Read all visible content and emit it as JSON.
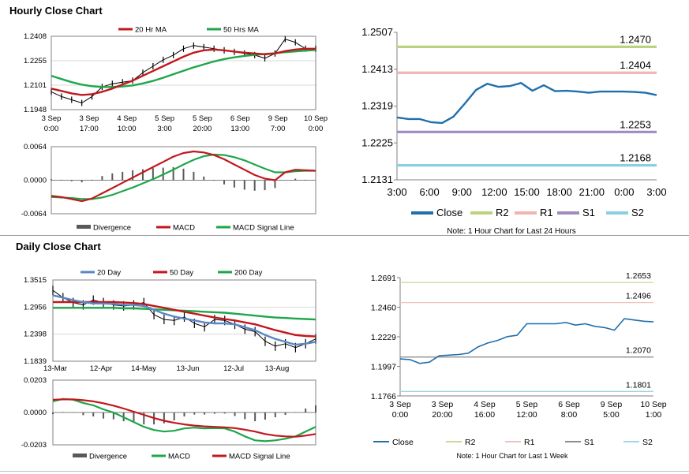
{
  "sections": {
    "hourly_title": "Hourly Close Chart",
    "daily_title": "Daily Close Chart"
  },
  "colors": {
    "red": "#c0181d",
    "green": "#1ea64a",
    "blue": "#5b87c6",
    "close_blue": "#1f6fad",
    "r2": "#bcd27e",
    "r1": "#f0b5b0",
    "s1": "#a08bbf",
    "s2": "#8ccfe0",
    "divergence": "#595959",
    "grey_line": "#b4b4b4",
    "dark_line": "#8c8c8c"
  },
  "chart_data": [
    {
      "id": "hourly_price",
      "type": "line",
      "legend": [
        "20 Hr MA",
        "50 Hrs MA"
      ],
      "yticks": [
        "1.2408",
        "1.2255",
        "1.2101",
        "1.1948"
      ],
      "ylim": [
        1.1948,
        1.2408
      ],
      "xticks": [
        [
          "3 Sep",
          "0:00"
        ],
        [
          "3 Sep",
          "17:00"
        ],
        [
          "4 Sep",
          "10:00"
        ],
        [
          "5 Sep",
          "3:00"
        ],
        [
          "5 Sep",
          "20:00"
        ],
        [
          "6 Sep",
          "13:00"
        ],
        [
          "9 Sep",
          "7:00"
        ],
        [
          "10 Sep",
          "0:00"
        ]
      ],
      "series": [
        {
          "name": "Close",
          "values": [
            1.206,
            1.203,
            1.201,
            1.199,
            1.203,
            1.209,
            1.211,
            1.212,
            1.213,
            1.218,
            1.222,
            1.226,
            1.229,
            1.233,
            1.235,
            1.234,
            1.233,
            1.232,
            1.231,
            1.23,
            1.229,
            1.227,
            1.23,
            1.239,
            1.237,
            1.233,
            1.233
          ]
        },
        {
          "name": "20 Hr MA",
          "values": [
            1.208,
            1.2065,
            1.205,
            1.204,
            1.2045,
            1.206,
            1.208,
            1.2105,
            1.213,
            1.216,
            1.219,
            1.222,
            1.225,
            1.228,
            1.2305,
            1.232,
            1.2325,
            1.232,
            1.2312,
            1.2305,
            1.23,
            1.2295,
            1.23,
            1.2315,
            1.2325,
            1.233,
            1.233
          ]
        },
        {
          "name": "50 Hrs MA",
          "values": [
            1.216,
            1.214,
            1.212,
            1.2105,
            1.2095,
            1.209,
            1.209,
            1.2093,
            1.21,
            1.2112,
            1.2128,
            1.2148,
            1.217,
            1.2192,
            1.2213,
            1.2232,
            1.225,
            1.2265,
            1.2276,
            1.2285,
            1.2292,
            1.2297,
            1.2302,
            1.2308,
            1.2313,
            1.2318,
            1.2322
          ]
        }
      ]
    },
    {
      "id": "hourly_macd",
      "type": "line",
      "legend": [
        "Divergence",
        "MACD",
        "MACD Signal Line"
      ],
      "yticks": [
        "0.0064",
        "0.0000",
        "-0.0064"
      ],
      "ylim": [
        -0.0064,
        0.0064
      ],
      "series": [
        {
          "name": "MACD",
          "values": [
            -0.003,
            -0.0032,
            -0.0036,
            -0.004,
            -0.0035,
            -0.0025,
            -0.0015,
            -0.0005,
            0.0005,
            0.0015,
            0.0025,
            0.0035,
            0.0045,
            0.0052,
            0.0055,
            0.0053,
            0.0048,
            0.004,
            0.003,
            0.002,
            0.001,
            0.0003,
            0.0,
            0.0015,
            0.002,
            0.0019,
            0.0018
          ]
        },
        {
          "name": "MACD Signal Line",
          "values": [
            -0.0032,
            -0.0033,
            -0.0034,
            -0.0036,
            -0.0036,
            -0.0033,
            -0.0028,
            -0.0021,
            -0.0014,
            -0.0006,
            0.0002,
            0.0011,
            0.002,
            0.003,
            0.0039,
            0.0046,
            0.0049,
            0.0048,
            0.0044,
            0.0038,
            0.003,
            0.0022,
            0.0015,
            0.0015,
            0.0017,
            0.0018,
            0.0018
          ]
        },
        {
          "name": "Divergence",
          "values": [
            0.0002,
            0.0001,
            -0.0002,
            -0.0004,
            0.0001,
            0.0008,
            0.0013,
            0.0016,
            0.0019,
            0.0021,
            0.0023,
            0.0024,
            0.0025,
            0.0022,
            0.0016,
            0.0007,
            -0.0001,
            -0.0008,
            -0.0014,
            -0.0018,
            -0.002,
            -0.0019,
            -0.0015,
            0.0,
            0.0003,
            0.0001,
            0.0
          ]
        }
      ]
    },
    {
      "id": "hourly_levels",
      "type": "line",
      "yticks": [
        "1.2507",
        "1.2413",
        "1.2319",
        "1.2225",
        "1.2131"
      ],
      "ylim": [
        1.2131,
        1.2507
      ],
      "xticks": [
        "3:00",
        "6:00",
        "9:00",
        "12:00",
        "15:00",
        "18:00",
        "21:00",
        "0:00",
        "3:00"
      ],
      "levels": [
        {
          "name": "R2",
          "value": 1.247,
          "label": "1.2470"
        },
        {
          "name": "R1",
          "value": 1.2404,
          "label": "1.2404"
        },
        {
          "name": "S1",
          "value": 1.2253,
          "label": "1.2253"
        },
        {
          "name": "S2",
          "value": 1.2168,
          "label": "1.2168"
        }
      ],
      "series": [
        {
          "name": "Close",
          "values": [
            1.229,
            1.2286,
            1.2286,
            1.2278,
            1.2276,
            1.2292,
            1.2325,
            1.236,
            1.2376,
            1.2368,
            1.237,
            1.2378,
            1.2358,
            1.2372,
            1.2357,
            1.2358,
            1.2356,
            1.2353,
            1.2356,
            1.2356,
            1.2356,
            1.2355,
            1.2353,
            1.2347
          ]
        }
      ],
      "legend": [
        "Close",
        "R2",
        "R1",
        "S1",
        "S2"
      ],
      "note": "Note: 1 Hour Chart for Last 24 Hours"
    },
    {
      "id": "daily_price",
      "type": "line",
      "legend": [
        "20 Day",
        "50 Day",
        "200 Day"
      ],
      "yticks": [
        "1.3515",
        "1.2956",
        "1.2398",
        "1.1839"
      ],
      "ylim": [
        1.1839,
        1.3515
      ],
      "xticks": [
        "13-Mar",
        "12-Apr",
        "14-May",
        "13-Jun",
        "12-Jul",
        "13-Aug"
      ],
      "series": [
        {
          "name": "Close",
          "values": [
            1.33,
            1.315,
            1.305,
            1.3,
            1.31,
            1.305,
            1.3,
            1.298,
            1.3,
            1.305,
            1.28,
            1.27,
            1.268,
            1.275,
            1.262,
            1.255,
            1.27,
            1.268,
            1.26,
            1.25,
            1.245,
            1.225,
            1.215,
            1.22,
            1.212,
            1.22,
            1.23
          ]
        },
        {
          "name": "20 Day",
          "values": [
            1.32,
            1.315,
            1.31,
            1.306,
            1.303,
            1.303,
            1.302,
            1.3,
            1.3,
            1.298,
            1.29,
            1.282,
            1.276,
            1.272,
            1.268,
            1.264,
            1.262,
            1.262,
            1.26,
            1.254,
            1.248,
            1.238,
            1.23,
            1.224,
            1.218,
            1.22,
            1.224
          ]
        },
        {
          "name": "50 Day",
          "values": [
            1.306,
            1.306,
            1.306,
            1.306,
            1.306,
            1.306,
            1.306,
            1.305,
            1.304,
            1.302,
            1.298,
            1.294,
            1.29,
            1.286,
            1.282,
            1.278,
            1.274,
            1.271,
            1.268,
            1.264,
            1.26,
            1.254,
            1.248,
            1.243,
            1.238,
            1.236,
            1.235
          ]
        },
        {
          "name": "200 Day",
          "values": [
            1.294,
            1.294,
            1.294,
            1.294,
            1.294,
            1.294,
            1.294,
            1.293,
            1.293,
            1.292,
            1.291,
            1.29,
            1.289,
            1.288,
            1.287,
            1.286,
            1.285,
            1.284,
            1.282,
            1.28,
            1.278,
            1.276,
            1.274,
            1.273,
            1.272,
            1.271,
            1.27
          ]
        }
      ]
    },
    {
      "id": "daily_macd",
      "type": "line",
      "legend": [
        "Divergence",
        "MACD",
        "MACD Signal Line"
      ],
      "yticks": [
        "0.0203",
        "0.0000",
        "-0.0203"
      ],
      "ylim": [
        -0.0203,
        0.0203
      ],
      "series": [
        {
          "name": "MACD",
          "values": [
            0.007,
            0.0085,
            0.008,
            0.006,
            0.0045,
            0.002,
            0.0,
            -0.003,
            -0.006,
            -0.009,
            -0.011,
            -0.012,
            -0.0115,
            -0.01,
            -0.0095,
            -0.01,
            -0.0098,
            -0.01,
            -0.012,
            -0.015,
            -0.0175,
            -0.018,
            -0.0175,
            -0.0165,
            -0.015,
            -0.012,
            -0.009
          ]
        },
        {
          "name": "MACD Signal Line",
          "values": [
            0.008,
            0.0082,
            0.0082,
            0.0077,
            0.007,
            0.0058,
            0.0043,
            0.0025,
            0.0005,
            -0.0015,
            -0.0035,
            -0.0052,
            -0.0065,
            -0.0075,
            -0.0082,
            -0.0087,
            -0.009,
            -0.0093,
            -0.0098,
            -0.0108,
            -0.012,
            -0.0135,
            -0.0145,
            -0.015,
            -0.0152,
            -0.0145,
            -0.0135
          ]
        },
        {
          "name": "Divergence",
          "values": [
            -0.001,
            0.0003,
            -0.0002,
            -0.0017,
            -0.0025,
            -0.0038,
            -0.0043,
            -0.0055,
            -0.0065,
            -0.0075,
            -0.0075,
            -0.0068,
            -0.005,
            -0.0025,
            -0.0013,
            -0.0013,
            -0.0008,
            -0.0007,
            -0.0022,
            -0.0042,
            -0.0055,
            -0.0045,
            -0.003,
            -0.0015,
            0.0002,
            0.0025,
            0.0045
          ]
        }
      ]
    },
    {
      "id": "daily_levels",
      "type": "line",
      "yticks": [
        "1.2691",
        "1.2460",
        "1.2229",
        "1.1997",
        "1.1766"
      ],
      "ylim": [
        1.1766,
        1.2691
      ],
      "xticks": [
        [
          "3 Sep",
          "0:00"
        ],
        [
          "3 Sep",
          "20:00"
        ],
        [
          "4 Sep",
          "16:00"
        ],
        [
          "5 Sep",
          "12:00"
        ],
        [
          "6 Sep",
          "8:00"
        ],
        [
          "9 Sep",
          "5:00"
        ],
        [
          "10 Sep",
          "1:00"
        ]
      ],
      "levels": [
        {
          "name": "R2",
          "value": 1.2653,
          "label": "1.2653"
        },
        {
          "name": "R1",
          "value": 1.2496,
          "label": "1.2496"
        },
        {
          "name": "S1",
          "value": 1.207,
          "label": "1.2070"
        },
        {
          "name": "S2",
          "value": 1.1801,
          "label": "1.1801"
        }
      ],
      "series": [
        {
          "name": "Close",
          "values": [
            1.2055,
            1.205,
            1.202,
            1.203,
            1.208,
            1.2085,
            1.209,
            1.21,
            1.215,
            1.218,
            1.22,
            1.223,
            1.224,
            1.233,
            1.233,
            1.233,
            1.233,
            1.234,
            1.232,
            1.233,
            1.231,
            1.23,
            1.228,
            1.237,
            1.236,
            1.235,
            1.2345
          ]
        }
      ],
      "legend": [
        "Close",
        "R2",
        "R1",
        "S1",
        "S2"
      ],
      "note": "Note: 1 Hour Chart for Last 1 Week"
    }
  ]
}
